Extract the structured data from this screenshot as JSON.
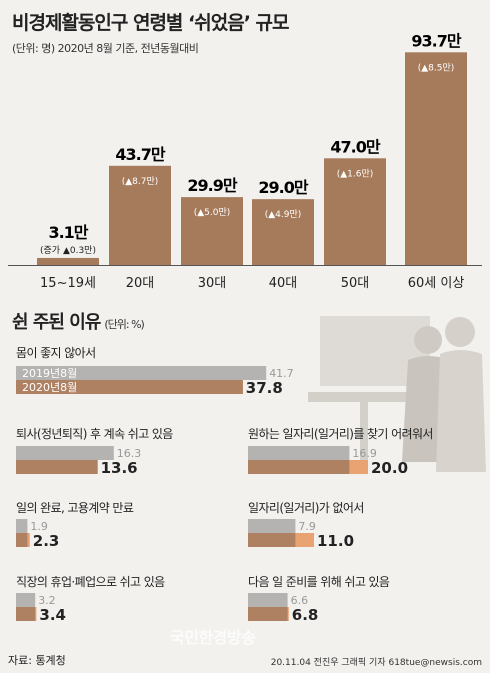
{
  "title": "비경제활동인구 연령별 ‘쉬었음’ 규모",
  "subtitle": "(단위: 명) 2020년 8월 기준, 전년동월대비",
  "colors": {
    "bar_brown": "#a67b5b",
    "bar_gray": "#b5b3b1",
    "bar_orange": "#e9a373",
    "bar_dark": "#a47b60",
    "increase": "#c0392b"
  },
  "chart_data": [
    {
      "type": "bar",
      "categories": [
        "15~19세",
        "20대",
        "30대",
        "40대",
        "50대",
        "60세 이상"
      ],
      "values": [
        3.1,
        43.7,
        29.9,
        29.0,
        47.0,
        93.7
      ],
      "value_labels": [
        "3.1만",
        "43.7만",
        "29.9만",
        "29.0만",
        "47.0만",
        "93.7만"
      ],
      "change_labels": [
        "(증가 ▲0.3만)",
        "(▲8.7만)",
        "(▲5.0만)",
        "(▲4.9만)",
        "(▲1.6만)",
        "(▲8.5만)"
      ],
      "title": "비경제활동인구 연령별 ‘쉬었음’ 규모"
    },
    {
      "type": "bar",
      "title": "쉰 주된 이유",
      "unit": "(단위: %)",
      "series_names": [
        "2019년8월",
        "2020년8월"
      ],
      "categories": [
        "몸이 좋지 않아서",
        "퇴사(정년퇴직) 후 계속 쉬고 있음",
        "원하는 일자리(일거리)를 찾기 어려워서",
        "일의 완료, 고용계약 만료",
        "일자리(일거리)가 없어서",
        "직장의 휴업·폐업으로 쉬고 있음",
        "다음 일 준비를 위해 쉬고 있음"
      ],
      "series": [
        {
          "name": "2019년8월",
          "values": [
            41.7,
            16.3,
            16.9,
            1.9,
            7.9,
            3.2,
            6.6
          ]
        },
        {
          "name": "2020년8월",
          "values": [
            37.8,
            13.6,
            20.0,
            2.3,
            11.0,
            3.4,
            6.8
          ]
        }
      ]
    }
  ],
  "source": "자료: 통계청",
  "credit": "20.11.04 전진우 그래픽 기자 618tue@newsis.com",
  "watermark": "국민한경방송"
}
